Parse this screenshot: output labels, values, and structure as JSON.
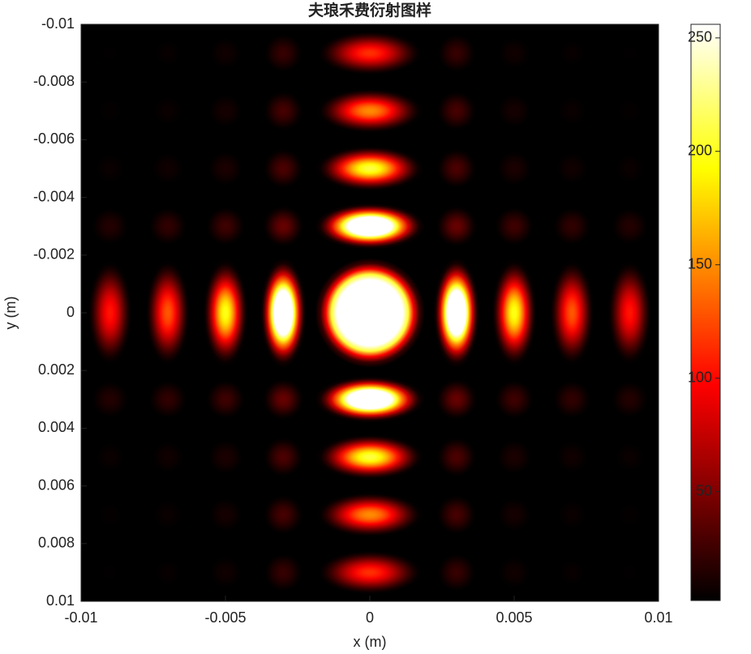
{
  "chart_data": {
    "type": "heatmap",
    "title": "夫琅禾费衍射图样",
    "x_label": "x (m)",
    "y_label": "y (m)",
    "x": [
      -0.009,
      -0.007,
      -0.005,
      -0.003,
      0,
      0.003,
      0.005,
      0.007,
      0.009
    ],
    "y": [
      -0.009,
      -0.007,
      -0.005,
      -0.003,
      0,
      0.003,
      0.005,
      0.007,
      0.009
    ],
    "z": [
      [
        3,
        5,
        8,
        22,
        115,
        22,
        8,
        5,
        3
      ],
      [
        4,
        6,
        10,
        28,
        150,
        28,
        10,
        6,
        4
      ],
      [
        6,
        8,
        12,
        30,
        210,
        30,
        12,
        8,
        6
      ],
      [
        15,
        20,
        25,
        40,
        400,
        40,
        25,
        20,
        15
      ],
      [
        105,
        130,
        200,
        400,
        1000,
        400,
        200,
        130,
        105
      ],
      [
        15,
        20,
        25,
        40,
        400,
        40,
        25,
        20,
        15
      ],
      [
        6,
        8,
        12,
        30,
        210,
        30,
        12,
        8,
        6
      ],
      [
        4,
        6,
        10,
        28,
        150,
        28,
        10,
        6,
        4
      ],
      [
        3,
        5,
        8,
        22,
        115,
        22,
        8,
        5,
        3
      ]
    ],
    "xlim": [
      -0.01,
      0.01
    ],
    "xticks": [
      -0.01,
      -0.005,
      0,
      0.005,
      0.01
    ],
    "ylim": [
      -0.01,
      0.01
    ],
    "yticks": [
      -0.01,
      -0.008,
      -0.006,
      -0.004,
      -0.002,
      0,
      0.002,
      0.004,
      0.006,
      0.008,
      0.01
    ],
    "y_reversed": true,
    "colormap": "hot",
    "clim": [
      2,
      256
    ],
    "colorbar_ticks": [
      50,
      100,
      150,
      200,
      250
    ]
  }
}
